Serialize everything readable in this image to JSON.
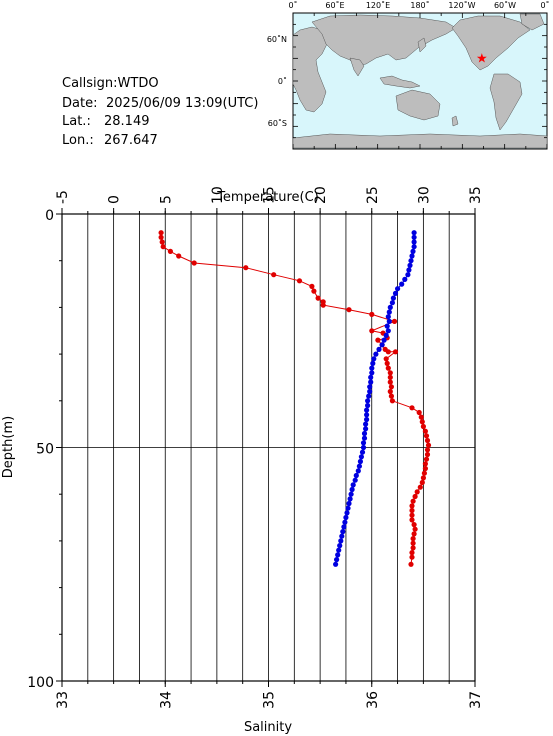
{
  "station": {
    "callsign_line": "Callsign:WTDO",
    "date_label": "Date:",
    "date_value": "2025/06/09 13:09(UTC)",
    "lat_label": "Lat.:",
    "lat_value": "28.149",
    "lon_label": "Lon.:",
    "lon_value": "267.647"
  },
  "map": {
    "top_labels": [
      "0˚",
      "60˚E",
      "120˚E",
      "180˚",
      "120˚W",
      "60˚W",
      "0˚"
    ],
    "left_labels": [
      "60˚N",
      "0˚",
      "60˚S"
    ],
    "ocean_color": "#d8f6fb",
    "land_color": "#bdbdbd",
    "marker": "red-star",
    "marker_lon": 267.647,
    "marker_lat": 28.149
  },
  "chart_data": {
    "type": "line",
    "ylabel": "Depth(m)",
    "ylim": [
      0,
      100
    ],
    "yticks": [
      "0",
      "50",
      "100"
    ],
    "y_inverted": true,
    "grid": true,
    "temperature_axis": {
      "label": "Temperature(C)",
      "position": "top",
      "range": [
        -5,
        35
      ],
      "ticks": [
        "-5",
        "0",
        "5",
        "10",
        "15",
        "20",
        "25",
        "30",
        "35"
      ],
      "color": "#e00000"
    },
    "salinity_axis": {
      "label": "Salinity",
      "position": "bottom",
      "range": [
        33,
        37
      ],
      "ticks": [
        "33",
        "34",
        "35",
        "36",
        "37"
      ],
      "color": "#0000e0"
    },
    "series": [
      {
        "axis": "temperature",
        "color": "#e00000",
        "points": [
          [
            4.6,
            4
          ],
          [
            4.6,
            5
          ],
          [
            4.7,
            6
          ],
          [
            4.8,
            7
          ],
          [
            5.5,
            8
          ],
          [
            6.3,
            9
          ],
          [
            7.8,
            10.5
          ],
          [
            12.8,
            11.5
          ],
          [
            15.5,
            13
          ],
          [
            18.0,
            14.3
          ],
          [
            19.2,
            15.5
          ],
          [
            19.4,
            16.5
          ],
          [
            19.8,
            18
          ],
          [
            20.3,
            18.8
          ],
          [
            20.3,
            19.5
          ],
          [
            22.8,
            20.5
          ],
          [
            25.0,
            21.5
          ],
          [
            27.2,
            23
          ],
          [
            25.0,
            25
          ],
          [
            26.1,
            25.5
          ],
          [
            26.5,
            26.5
          ],
          [
            25.6,
            27
          ],
          [
            26.0,
            28
          ],
          [
            26.3,
            29
          ],
          [
            26.6,
            29.5
          ],
          [
            27.3,
            29.5
          ],
          [
            26.4,
            31
          ],
          [
            26.5,
            32
          ],
          [
            26.6,
            33
          ],
          [
            26.8,
            34
          ],
          [
            26.8,
            35
          ],
          [
            26.8,
            36
          ],
          [
            26.9,
            37
          ],
          [
            26.8,
            38
          ],
          [
            26.9,
            39
          ],
          [
            27.0,
            40
          ],
          [
            28.9,
            41.5
          ],
          [
            29.6,
            42.5
          ],
          [
            29.8,
            43.5
          ],
          [
            29.9,
            44.5
          ],
          [
            30.0,
            45.5
          ],
          [
            30.2,
            46.5
          ],
          [
            30.3,
            47.5
          ],
          [
            30.4,
            48.5
          ],
          [
            30.5,
            49.5
          ],
          [
            30.4,
            50.5
          ],
          [
            30.4,
            51.5
          ],
          [
            30.3,
            52.5
          ],
          [
            30.2,
            53.5
          ],
          [
            30.2,
            54.5
          ],
          [
            30.1,
            55.5
          ],
          [
            30.0,
            56.5
          ],
          [
            29.9,
            57.5
          ],
          [
            29.7,
            58.5
          ],
          [
            29.4,
            59.5
          ],
          [
            29.2,
            60.5
          ],
          [
            29.0,
            61.5
          ],
          [
            28.9,
            62.5
          ],
          [
            28.9,
            63.5
          ],
          [
            28.9,
            64.5
          ],
          [
            28.9,
            65.5
          ],
          [
            29.1,
            66.5
          ],
          [
            29.2,
            67.5
          ],
          [
            29.1,
            68.5
          ],
          [
            29.0,
            69.5
          ],
          [
            29.0,
            70.5
          ],
          [
            29.0,
            71.5
          ],
          [
            28.9,
            72.5
          ],
          [
            28.9,
            73.5
          ],
          [
            28.8,
            75
          ]
        ]
      },
      {
        "axis": "salinity",
        "color": "#0000e0",
        "points": [
          [
            36.41,
            4
          ],
          [
            36.41,
            5
          ],
          [
            36.41,
            6
          ],
          [
            36.41,
            7
          ],
          [
            36.4,
            8
          ],
          [
            36.39,
            9
          ],
          [
            36.38,
            10
          ],
          [
            36.37,
            11
          ],
          [
            36.36,
            12
          ],
          [
            36.35,
            13
          ],
          [
            36.32,
            14
          ],
          [
            36.29,
            15
          ],
          [
            36.25,
            16
          ],
          [
            36.23,
            17
          ],
          [
            36.21,
            18
          ],
          [
            36.2,
            19
          ],
          [
            36.18,
            20
          ],
          [
            36.17,
            21
          ],
          [
            36.16,
            22
          ],
          [
            36.17,
            23
          ],
          [
            36.15,
            24
          ],
          [
            36.16,
            25
          ],
          [
            36.14,
            26
          ],
          [
            36.12,
            27
          ],
          [
            36.1,
            28
          ],
          [
            36.07,
            29
          ],
          [
            36.04,
            30
          ],
          [
            36.02,
            31
          ],
          [
            36.01,
            32
          ],
          [
            36.0,
            33
          ],
          [
            36.0,
            34
          ],
          [
            35.99,
            35
          ],
          [
            35.99,
            36
          ],
          [
            35.98,
            37
          ],
          [
            35.98,
            38
          ],
          [
            35.97,
            39
          ],
          [
            35.96,
            40
          ],
          [
            35.96,
            41
          ],
          [
            35.95,
            42
          ],
          [
            35.95,
            43
          ],
          [
            35.95,
            44
          ],
          [
            35.94,
            45
          ],
          [
            35.94,
            46
          ],
          [
            35.93,
            47
          ],
          [
            35.93,
            48
          ],
          [
            35.92,
            49
          ],
          [
            35.92,
            50
          ],
          [
            35.91,
            51
          ],
          [
            35.9,
            52
          ],
          [
            35.89,
            53
          ],
          [
            35.88,
            54
          ],
          [
            35.87,
            55
          ],
          [
            35.85,
            56
          ],
          [
            35.84,
            57
          ],
          [
            35.82,
            58
          ],
          [
            35.81,
            59
          ],
          [
            35.8,
            60
          ],
          [
            35.79,
            61
          ],
          [
            35.78,
            62
          ],
          [
            35.77,
            63
          ],
          [
            35.76,
            64
          ],
          [
            35.75,
            65
          ],
          [
            35.74,
            66
          ],
          [
            35.73,
            67
          ],
          [
            35.72,
            68
          ],
          [
            35.71,
            69
          ],
          [
            35.7,
            70
          ],
          [
            35.69,
            71
          ],
          [
            35.68,
            72
          ],
          [
            35.67,
            73
          ],
          [
            35.66,
            74
          ],
          [
            35.65,
            75
          ]
        ]
      }
    ]
  }
}
